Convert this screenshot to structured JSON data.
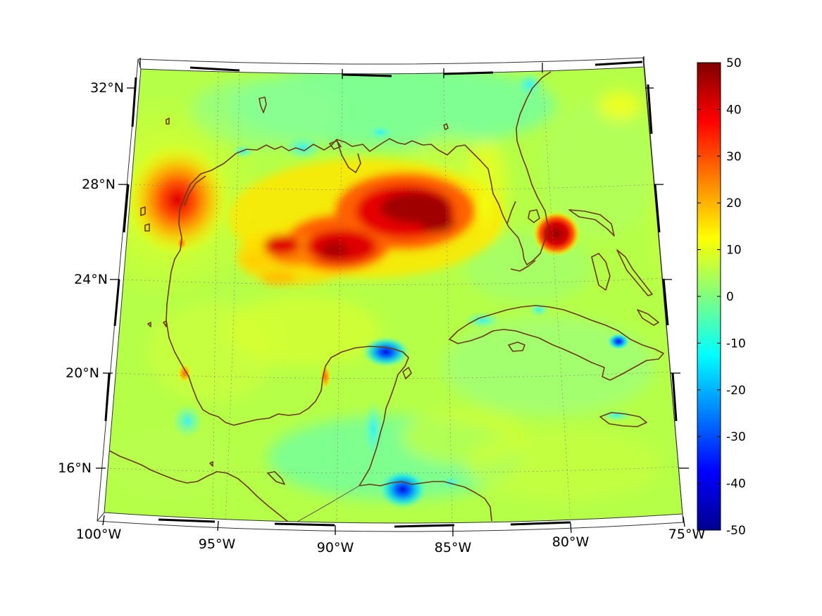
{
  "map": {
    "lon_labels": [
      "100°W",
      "95°W",
      "90°W",
      "85°W",
      "80°W",
      "75°W"
    ],
    "lat_labels": [
      "32°N",
      "28°N",
      "24°N",
      "20°N",
      "16°N"
    ],
    "extent": {
      "lon": [
        -100,
        -75
      ],
      "lat": [
        14,
        33
      ]
    }
  },
  "colorbar": {
    "colormap": "jet",
    "range": [
      -50,
      50
    ],
    "tick_labels": [
      "50",
      "40",
      "30",
      "20",
      "10",
      "0",
      "-10",
      "-20",
      "-30",
      "-40",
      "-50"
    ],
    "colors": [
      "#00008f",
      "#0000ff",
      "#0080ff",
      "#00ffff",
      "#80ff80",
      "#ffff00",
      "#ff8000",
      "#ff0000",
      "#800000"
    ]
  },
  "field": {
    "background_value": 3,
    "features": [
      {
        "id": "central-gulf-high",
        "lon": -86.5,
        "lat": 26.7,
        "value": 46
      },
      {
        "id": "central-gulf-west",
        "lon": -90.2,
        "lat": 25.4,
        "value": 40
      },
      {
        "id": "central-gulf-extension",
        "lon": -92,
        "lat": 25.3,
        "value": 32
      },
      {
        "id": "texas-coast-high",
        "lon": -97.3,
        "lat": 27.0,
        "value": 30
      },
      {
        "id": "miami-high",
        "lon": -80.3,
        "lat": 25.9,
        "value": 48
      },
      {
        "id": "yucatan-north-low",
        "lon": -87.6,
        "lat": 21.6,
        "value": -18
      },
      {
        "id": "honduras-low",
        "lon": -87.2,
        "lat": 15.9,
        "value": -30
      },
      {
        "id": "veracruz-low",
        "lon": -96.4,
        "lat": 18.5,
        "value": -12
      }
    ]
  }
}
